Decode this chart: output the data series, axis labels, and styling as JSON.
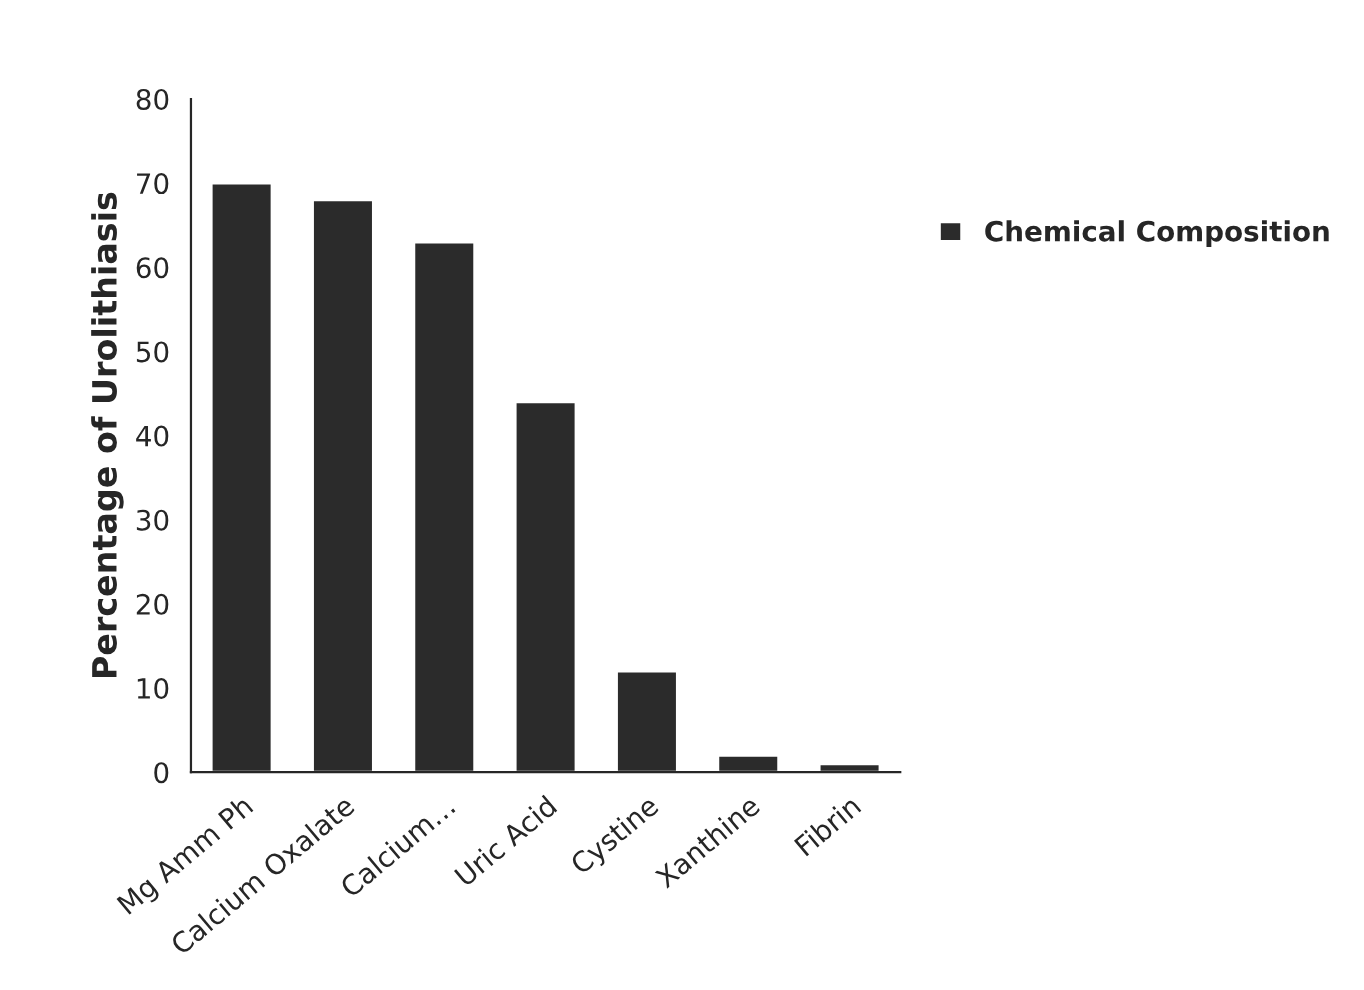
{
  "chart_data": {
    "type": "bar",
    "ylabel": "Percentage of Urolithiasis",
    "categories": [
      "Mg Amm Ph",
      "Calcium Oxalate",
      "Calcium…",
      "Uric Acid",
      "Cystine",
      "Xanthine",
      "Fibrin"
    ],
    "series": [
      {
        "name": "Chemical Composition",
        "color": "#2b2b2b",
        "values": [
          70,
          68,
          63,
          44,
          12,
          2,
          1
        ]
      }
    ],
    "ylim": [
      0,
      80
    ],
    "yticks": [
      0,
      10,
      20,
      30,
      40,
      50,
      60,
      70,
      80
    ],
    "grid": false,
    "legend": "right"
  }
}
